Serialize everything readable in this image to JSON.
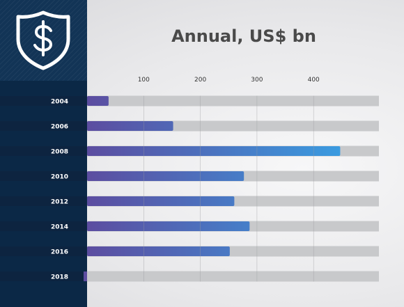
{
  "chart_data": {
    "type": "bar",
    "orientation": "horizontal",
    "title": "Annual, US$ bn",
    "categories": [
      "2004",
      "2006",
      "2008",
      "2010",
      "2012",
      "2014",
      "2016",
      "2018"
    ],
    "values": [
      38,
      152,
      447,
      277,
      260,
      287,
      252,
      0
    ],
    "x_ticks": [
      100,
      200,
      300,
      400
    ],
    "xlim": [
      0,
      516
    ],
    "grid": true,
    "legend": "none"
  },
  "colors": {
    "bar_start": "#5c4da0",
    "bar_end": "#3a9be0",
    "track": "#c8c9cb",
    "sidebar": "#0b2846",
    "label_band": "#0d2440",
    "title": "#4a4a4a"
  },
  "icons": {
    "logo": "dollar-shield-icon"
  }
}
